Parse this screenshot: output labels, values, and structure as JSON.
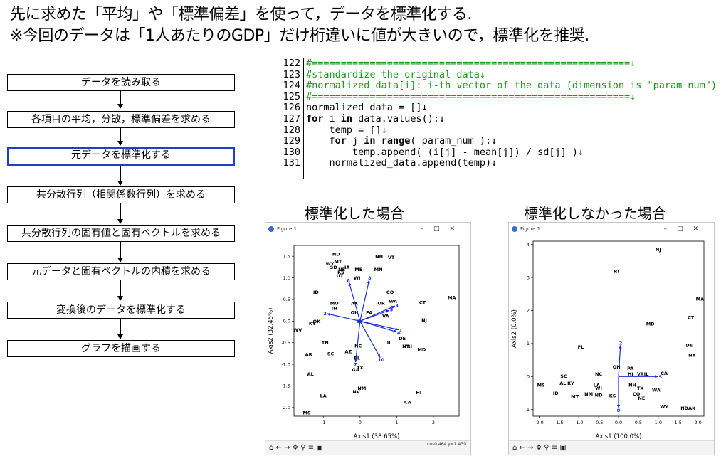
{
  "header": {
    "line1": "先に求めた「平均」や「標準偏差」を使って，データを標準化する.",
    "line2": "※今回のデータは「1人あたりのGDP」だけ桁違いに値が大きいので，標準化を推奨."
  },
  "flow": {
    "steps": [
      "データを読み取る",
      "各項目の平均，分散，標準偏差を求める",
      "元データを標準化する",
      "共分散行列（相関係数行列）を求める",
      "共分散行列の固有値と固有ベクトルを求める",
      "元データと固有ベクトルの内積を求める",
      "変換後のデータを標準化する",
      "グラフを描画する"
    ],
    "active_index": 2
  },
  "code": {
    "lines": [
      {
        "n": "122",
        "t": "#=======================================================↓"
      },
      {
        "n": "123",
        "t": "#standardize the original data↓"
      },
      {
        "n": "124",
        "t": "#normalized_data[i]: i-th vector of the data (dimension is \"param_num\").↓"
      },
      {
        "n": "125",
        "t": "#=======================================================↓"
      },
      {
        "n": "126",
        "t": "normalized_data = []↓"
      },
      {
        "n": "127",
        "t": "for i in data.values():↓"
      },
      {
        "n": "128",
        "t": "    temp = []↓"
      },
      {
        "n": "129",
        "t": "    for j in range( param_num ):↓"
      },
      {
        "n": "130",
        "t": "        temp.append( (i[j] - mean[j]) / sd[j] )↓"
      },
      {
        "n": "131",
        "t": "    normalized_data.append(temp)↓"
      }
    ]
  },
  "figures": {
    "left_title": "標準化した場合",
    "right_title": "標準化しなかった場合",
    "window_label": "Figure 1",
    "left_coord": "x=-0.464 y=1.439"
  },
  "chart_data": [
    {
      "type": "scatter",
      "title": "標準化した場合",
      "xlabel": "Axis1 (38.65%)",
      "ylabel": "Axis2 (32.45%)",
      "xlim": [
        -1.8,
        2.7
      ],
      "ylim": [
        -2.2,
        1.75
      ],
      "xticks": [
        -1,
        0,
        1,
        2
      ],
      "yticks": [
        -2.0,
        -1.5,
        -1.0,
        -0.5,
        0.0,
        0.5,
        1.0,
        1.5
      ],
      "points": [
        {
          "label": "ND",
          "x": -0.65,
          "y": 1.55
        },
        {
          "label": "NH",
          "x": 0.52,
          "y": 1.5
        },
        {
          "label": "VT",
          "x": 0.85,
          "y": 1.48
        },
        {
          "label": "MT",
          "x": -0.6,
          "y": 1.38
        },
        {
          "label": "WY",
          "x": -0.82,
          "y": 1.33
        },
        {
          "label": "SD",
          "x": -0.72,
          "y": 1.25
        },
        {
          "label": "IA",
          "x": -0.35,
          "y": 1.25
        },
        {
          "label": "NE",
          "x": -0.5,
          "y": 1.2
        },
        {
          "label": "ME",
          "x": -0.04,
          "y": 1.2
        },
        {
          "label": "MN",
          "x": 0.5,
          "y": 1.2
        },
        {
          "label": "KS",
          "x": -0.52,
          "y": 1.13
        },
        {
          "label": "UT",
          "x": -0.55,
          "y": 1.05
        },
        {
          "label": "WI",
          "x": -0.08,
          "y": 1.0
        },
        {
          "label": "ID",
          "x": -1.2,
          "y": 0.67
        },
        {
          "label": "CO",
          "x": 0.82,
          "y": 0.67
        },
        {
          "label": "MA",
          "x": 2.5,
          "y": 0.55
        },
        {
          "label": "WA",
          "x": 0.9,
          "y": 0.47
        },
        {
          "label": "CT",
          "x": 1.7,
          "y": 0.43
        },
        {
          "label": "MO",
          "x": -0.7,
          "y": 0.42
        },
        {
          "label": "AK",
          "x": -0.15,
          "y": 0.42
        },
        {
          "label": "OR",
          "x": 0.58,
          "y": 0.42
        },
        {
          "label": "IN",
          "x": -0.7,
          "y": 0.3
        },
        {
          "label": "OH",
          "x": -0.15,
          "y": 0.2
        },
        {
          "label": "PA",
          "x": 0.25,
          "y": 0.2
        },
        {
          "label": "VA",
          "x": 0.7,
          "y": 0.12
        },
        {
          "label": "NJ",
          "x": 1.75,
          "y": 0.03
        },
        {
          "label": "OK",
          "x": -1.18,
          "y": 0.0
        },
        {
          "label": "KY",
          "x": -1.3,
          "y": -0.05
        },
        {
          "label": "HI",
          "x": 0.0,
          "y": 0.0
        },
        {
          "label": "WV",
          "x": -1.7,
          "y": -0.2
        },
        {
          "label": "DE",
          "x": 1.15,
          "y": -0.4
        },
        {
          "label": "IL",
          "x": 0.8,
          "y": -0.5
        },
        {
          "label": "TN",
          "x": -0.95,
          "y": -0.5
        },
        {
          "label": "NC",
          "x": -0.05,
          "y": -0.57
        },
        {
          "label": "RI",
          "x": 1.35,
          "y": -0.58
        },
        {
          "label": "NY",
          "x": 1.25,
          "y": -0.58
        },
        {
          "label": "MD",
          "x": 1.68,
          "y": -0.65
        },
        {
          "label": "AZ",
          "x": -0.32,
          "y": -0.7
        },
        {
          "label": "SC",
          "x": -0.8,
          "y": -0.75
        },
        {
          "label": "AR",
          "x": -1.4,
          "y": -0.77
        },
        {
          "label": "FL",
          "x": -0.08,
          "y": -0.85
        },
        {
          "label": "TX",
          "x": 0.0,
          "y": -1.07
        },
        {
          "label": "GA",
          "x": -0.12,
          "y": -1.12
        },
        {
          "label": "AL",
          "x": -1.35,
          "y": -1.22
        },
        {
          "label": "NM",
          "x": 0.05,
          "y": -1.55
        },
        {
          "label": "NV",
          "x": -0.1,
          "y": -1.63
        },
        {
          "label": "HI",
          "x": 1.6,
          "y": -1.65
        },
        {
          "label": "LA",
          "x": -1.0,
          "y": -1.72
        },
        {
          "label": "CA",
          "x": 1.3,
          "y": -1.87
        },
        {
          "label": "MS",
          "x": -1.45,
          "y": -2.12
        }
      ],
      "vectors": [
        {
          "label": "1",
          "x": 1.05,
          "y": -0.2
        },
        {
          "label": "2",
          "x": -0.9,
          "y": 0.17
        },
        {
          "label": "3",
          "x": 0.95,
          "y": 0.35
        },
        {
          "label": "4",
          "x": 1.0,
          "y": -0.25
        },
        {
          "label": "5",
          "x": 0.8,
          "y": 0.25
        },
        {
          "label": "6",
          "x": -0.3,
          "y": 0.9
        },
        {
          "label": "7",
          "x": -0.12,
          "y": -0.95
        },
        {
          "label": "8",
          "x": 0.25,
          "y": 0.95
        },
        {
          "label": "10",
          "x": 0.55,
          "y": -0.85
        }
      ]
    },
    {
      "type": "scatter",
      "title": "標準化しなかった場合",
      "xlabel": "Axis1 (100.0%)",
      "ylabel": "Axis2 (0.0%)",
      "xlim": [
        -2.15,
        2.15
      ],
      "ylim": [
        -1.2,
        4.1
      ],
      "xticks": [
        -2.0,
        -1.5,
        -1.0,
        -0.5,
        0.0,
        0.5,
        1.0,
        1.5,
        2.0
      ],
      "yticks": [
        -1,
        0,
        1,
        2,
        3,
        4
      ],
      "points": [
        {
          "label": "NJ",
          "x": 1.0,
          "y": 3.85
        },
        {
          "label": "RI",
          "x": -0.05,
          "y": 3.2
        },
        {
          "label": "MA",
          "x": 2.05,
          "y": 2.35
        },
        {
          "label": "CT",
          "x": 1.82,
          "y": 1.8
        },
        {
          "label": "MD",
          "x": 0.8,
          "y": 1.6
        },
        {
          "label": "DE",
          "x": 1.78,
          "y": 0.95
        },
        {
          "label": "NY",
          "x": 1.85,
          "y": 0.65
        },
        {
          "label": "FL",
          "x": -0.95,
          "y": 0.9
        },
        {
          "label": "OH",
          "x": -0.05,
          "y": 0.3
        },
        {
          "label": "PA",
          "x": 0.3,
          "y": 0.25
        },
        {
          "label": "HI",
          "x": 0.3,
          "y": 0.08
        },
        {
          "label": "VA",
          "x": 0.55,
          "y": 0.08
        },
        {
          "label": "IL",
          "x": 0.7,
          "y": 0.08
        },
        {
          "label": "CA",
          "x": 1.15,
          "y": 0.1
        },
        {
          "label": "SC",
          "x": -1.38,
          "y": 0.02
        },
        {
          "label": "NC",
          "x": -0.5,
          "y": 0.08
        },
        {
          "label": "MS",
          "x": -1.95,
          "y": -0.25
        },
        {
          "label": "AL",
          "x": -1.4,
          "y": -0.2
        },
        {
          "label": "KY",
          "x": -1.2,
          "y": -0.2
        },
        {
          "label": "LA",
          "x": -0.55,
          "y": -0.25
        },
        {
          "label": "WI",
          "x": -0.5,
          "y": -0.35
        },
        {
          "label": "NH",
          "x": 0.35,
          "y": -0.25
        },
        {
          "label": "TX",
          "x": 0.55,
          "y": -0.35
        },
        {
          "label": "WA",
          "x": 0.95,
          "y": -0.4
        },
        {
          "label": "ID",
          "x": -1.58,
          "y": -0.5
        },
        {
          "label": "MT",
          "x": -1.1,
          "y": -0.6
        },
        {
          "label": "NM",
          "x": -0.75,
          "y": -0.52
        },
        {
          "label": "ND",
          "x": -0.5,
          "y": -0.55
        },
        {
          "label": "KS",
          "x": -0.15,
          "y": -0.58
        },
        {
          "label": "CO",
          "x": 0.45,
          "y": -0.52
        },
        {
          "label": "NE",
          "x": 0.58,
          "y": -0.65
        },
        {
          "label": "WY",
          "x": 1.15,
          "y": -0.9
        },
        {
          "label": "NDAK",
          "x": 1.75,
          "y": -0.95
        }
      ],
      "vectors": [
        {
          "label": "5",
          "x": 1.0,
          "y": 0.0
        },
        {
          "label": "2",
          "x": 0.05,
          "y": 0.95
        },
        {
          "label": "8",
          "x": 0.0,
          "y": -0.95
        }
      ]
    }
  ]
}
